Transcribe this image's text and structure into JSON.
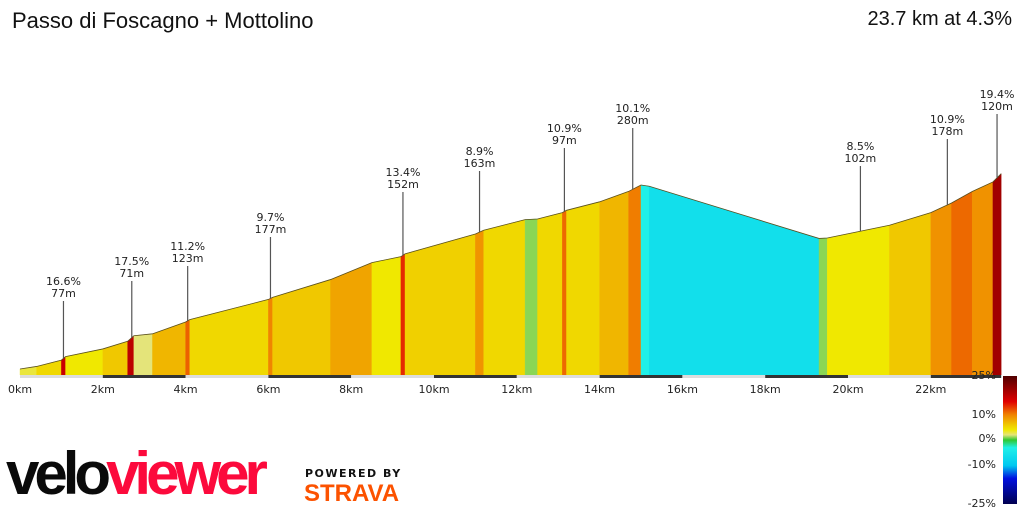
{
  "header": {
    "title": "Passo di Foscagno + Mottolino",
    "summary": "23.7 km at 4.3%"
  },
  "branding": {
    "logo_part1": "velo",
    "logo_part2": "viewer",
    "powered_by": "POWERED BY",
    "strava": "STRAVA"
  },
  "chart_data": {
    "type": "area",
    "xlabel": "",
    "ylabel": "",
    "x_unit": "km",
    "xlim": [
      0,
      23.7
    ],
    "x_ticks": [
      "0km",
      "2km",
      "4km",
      "6km",
      "8km",
      "10km",
      "12km",
      "14km",
      "16km",
      "18km",
      "20km",
      "22km"
    ],
    "segments": [
      [
        0,
        0.4,
        3
      ],
      [
        0.4,
        1.0,
        5
      ],
      [
        1.0,
        1.1,
        16.6
      ],
      [
        1.1,
        2.0,
        4
      ],
      [
        2.0,
        2.6,
        6
      ],
      [
        2.6,
        2.75,
        17.5
      ],
      [
        2.75,
        3.2,
        2
      ],
      [
        3.2,
        4.0,
        7
      ],
      [
        4.0,
        4.1,
        11.2
      ],
      [
        4.1,
        6.0,
        5
      ],
      [
        6.0,
        6.1,
        9.7
      ],
      [
        6.1,
        7.5,
        6
      ],
      [
        7.5,
        8.5,
        8
      ],
      [
        8.5,
        9.2,
        4
      ],
      [
        9.2,
        9.3,
        13.4
      ],
      [
        9.3,
        11.0,
        5.5
      ],
      [
        11.0,
        11.2,
        8.9
      ],
      [
        11.2,
        12.2,
        5
      ],
      [
        12.2,
        12.5,
        1
      ],
      [
        12.5,
        13.1,
        5
      ],
      [
        13.1,
        13.2,
        10.9
      ],
      [
        13.2,
        14.0,
        5
      ],
      [
        14.0,
        14.7,
        7
      ],
      [
        14.7,
        15.0,
        10.1
      ],
      [
        15.0,
        15.2,
        -3
      ],
      [
        15.2,
        17.5,
        -6
      ],
      [
        17.5,
        19.3,
        -6
      ],
      [
        19.3,
        19.5,
        1
      ],
      [
        19.5,
        21.0,
        4
      ],
      [
        21.0,
        22.0,
        6
      ],
      [
        22.0,
        22.5,
        9
      ],
      [
        22.5,
        23.0,
        10.9
      ],
      [
        23.0,
        23.5,
        9
      ],
      [
        23.5,
        23.7,
        19.4
      ]
    ],
    "annotations": [
      {
        "km": 1.05,
        "grade": "16.6%",
        "length": "77m"
      },
      {
        "km": 2.7,
        "grade": "17.5%",
        "length": "71m"
      },
      {
        "km": 4.05,
        "grade": "11.2%",
        "length": "123m"
      },
      {
        "km": 6.05,
        "grade": "9.7%",
        "length": "177m"
      },
      {
        "km": 9.25,
        "grade": "13.4%",
        "length": "152m"
      },
      {
        "km": 11.1,
        "grade": "8.9%",
        "length": "163m"
      },
      {
        "km": 13.15,
        "grade": "10.9%",
        "length": "97m"
      },
      {
        "km": 14.8,
        "grade": "10.1%",
        "length": "280m"
      },
      {
        "km": 20.3,
        "grade": "8.5%",
        "length": "102m"
      },
      {
        "km": 22.4,
        "grade": "10.9%",
        "length": "178m"
      },
      {
        "km": 23.6,
        "grade": "19.4%",
        "length": "120m"
      }
    ],
    "colorbar": {
      "ticks": [
        "25%",
        "10%",
        "0%",
        "-10%",
        "-25%"
      ],
      "stops": [
        [
          25,
          "#500000"
        ],
        [
          15,
          "#e00000"
        ],
        [
          10,
          "#f08000"
        ],
        [
          6,
          "#f0c800"
        ],
        [
          4,
          "#f0e800"
        ],
        [
          2,
          "#e4e47a"
        ],
        [
          0,
          "#30c830"
        ],
        [
          -3,
          "#20f0e8"
        ],
        [
          -10,
          "#00c8f0"
        ],
        [
          -15,
          "#0010e0"
        ],
        [
          -25,
          "#000050"
        ]
      ]
    }
  }
}
